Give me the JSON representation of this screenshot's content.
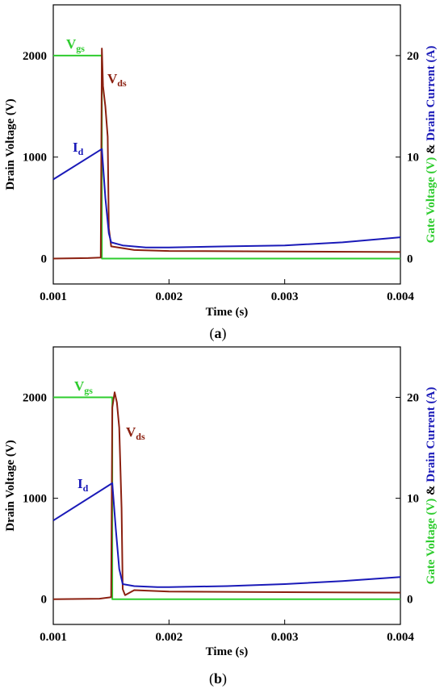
{
  "colors": {
    "vgs": "#2ecc2e",
    "vds": "#8b2010",
    "id": "#1a1ab8",
    "right_label_green": "#2ecc2e",
    "right_label_blue": "#1a1ab8"
  },
  "chart_data": [
    {
      "type": "line",
      "panel_label": "a",
      "xlabel": "Time (s)",
      "ylabel_left": "Drain Voltage (V)",
      "ylabel_right_part1": "Gate Voltage (V)",
      "ylabel_right_amp": " & ",
      "ylabel_right_part2": "Drain Current (A)",
      "xlim": [
        0.001,
        0.004
      ],
      "ylim_left": [
        -250,
        2500
      ],
      "ylim_right": [
        -2.5,
        25
      ],
      "x_ticks": [
        "0.001",
        "0.002",
        "0.003",
        "0.004"
      ],
      "y_left_ticks": [
        "0",
        "1000",
        "2000"
      ],
      "y_right_ticks": [
        "0",
        "10",
        "20"
      ],
      "annotations": {
        "vgs_main": "V",
        "vgs_sub": "gs",
        "vds_main": "V",
        "vds_sub": "ds",
        "id_main": "I",
        "id_sub": "d"
      },
      "series": [
        {
          "name": "Vgs",
          "axis": "left",
          "x": [
            0.001,
            0.00142,
            0.00142,
            0.004
          ],
          "y": [
            2000,
            2000,
            0,
            0
          ]
        },
        {
          "name": "Vds",
          "axis": "left",
          "x": [
            0.001,
            0.0013,
            0.00141,
            0.00142,
            0.00143,
            0.00145,
            0.00147,
            0.00148,
            0.0015,
            0.0017,
            0.002,
            0.003,
            0.004
          ],
          "y": [
            0,
            5,
            10,
            2070,
            1700,
            1500,
            1200,
            300,
            120,
            85,
            75,
            70,
            65
          ]
        },
        {
          "name": "Id",
          "axis": "right",
          "x": [
            0.001,
            0.00142,
            0.00145,
            0.00148,
            0.0015,
            0.0016,
            0.0018,
            0.002,
            0.0025,
            0.003,
            0.0035,
            0.004
          ],
          "y": [
            7.8,
            10.8,
            6,
            2.5,
            1.6,
            1.3,
            1.1,
            1.1,
            1.2,
            1.3,
            1.6,
            2.1
          ]
        }
      ]
    },
    {
      "type": "line",
      "panel_label": "b",
      "xlabel": "Time (s)",
      "ylabel_left": "Drain Voltage (V)",
      "ylabel_right_part1": "Gate Voltage (V)",
      "ylabel_right_amp": " & ",
      "ylabel_right_part2": "Drain Current (A)",
      "xlim": [
        0.001,
        0.004
      ],
      "ylim_left": [
        -250,
        2500
      ],
      "ylim_right": [
        -2.5,
        25
      ],
      "x_ticks": [
        "0.001",
        "0.002",
        "0.003",
        "0.004"
      ],
      "y_left_ticks": [
        "0",
        "1000",
        "2000"
      ],
      "y_right_ticks": [
        "0",
        "10",
        "20"
      ],
      "annotations": {
        "vgs_main": "V",
        "vgs_sub": "gs",
        "vds_main": "V",
        "vds_sub": "ds",
        "id_main": "I",
        "id_sub": "d"
      },
      "series": [
        {
          "name": "Vgs",
          "axis": "left",
          "x": [
            0.001,
            0.00151,
            0.00151,
            0.004
          ],
          "y": [
            2000,
            2000,
            0,
            0
          ]
        },
        {
          "name": "Vds",
          "axis": "left",
          "x": [
            0.001,
            0.0014,
            0.0015,
            0.00151,
            0.00153,
            0.00155,
            0.00157,
            0.00159,
            0.0016,
            0.00162,
            0.0017,
            0.002,
            0.003,
            0.004
          ],
          "y": [
            0,
            5,
            20,
            1900,
            2050,
            1950,
            1700,
            900,
            100,
            40,
            90,
            75,
            70,
            65
          ]
        },
        {
          "name": "Id",
          "axis": "right",
          "x": [
            0.001,
            0.00151,
            0.00154,
            0.00157,
            0.0016,
            0.0017,
            0.0019,
            0.002,
            0.0025,
            0.003,
            0.0035,
            0.004
          ],
          "y": [
            7.8,
            11.5,
            7,
            3,
            1.5,
            1.3,
            1.2,
            1.2,
            1.3,
            1.5,
            1.8,
            2.2
          ]
        }
      ]
    }
  ]
}
